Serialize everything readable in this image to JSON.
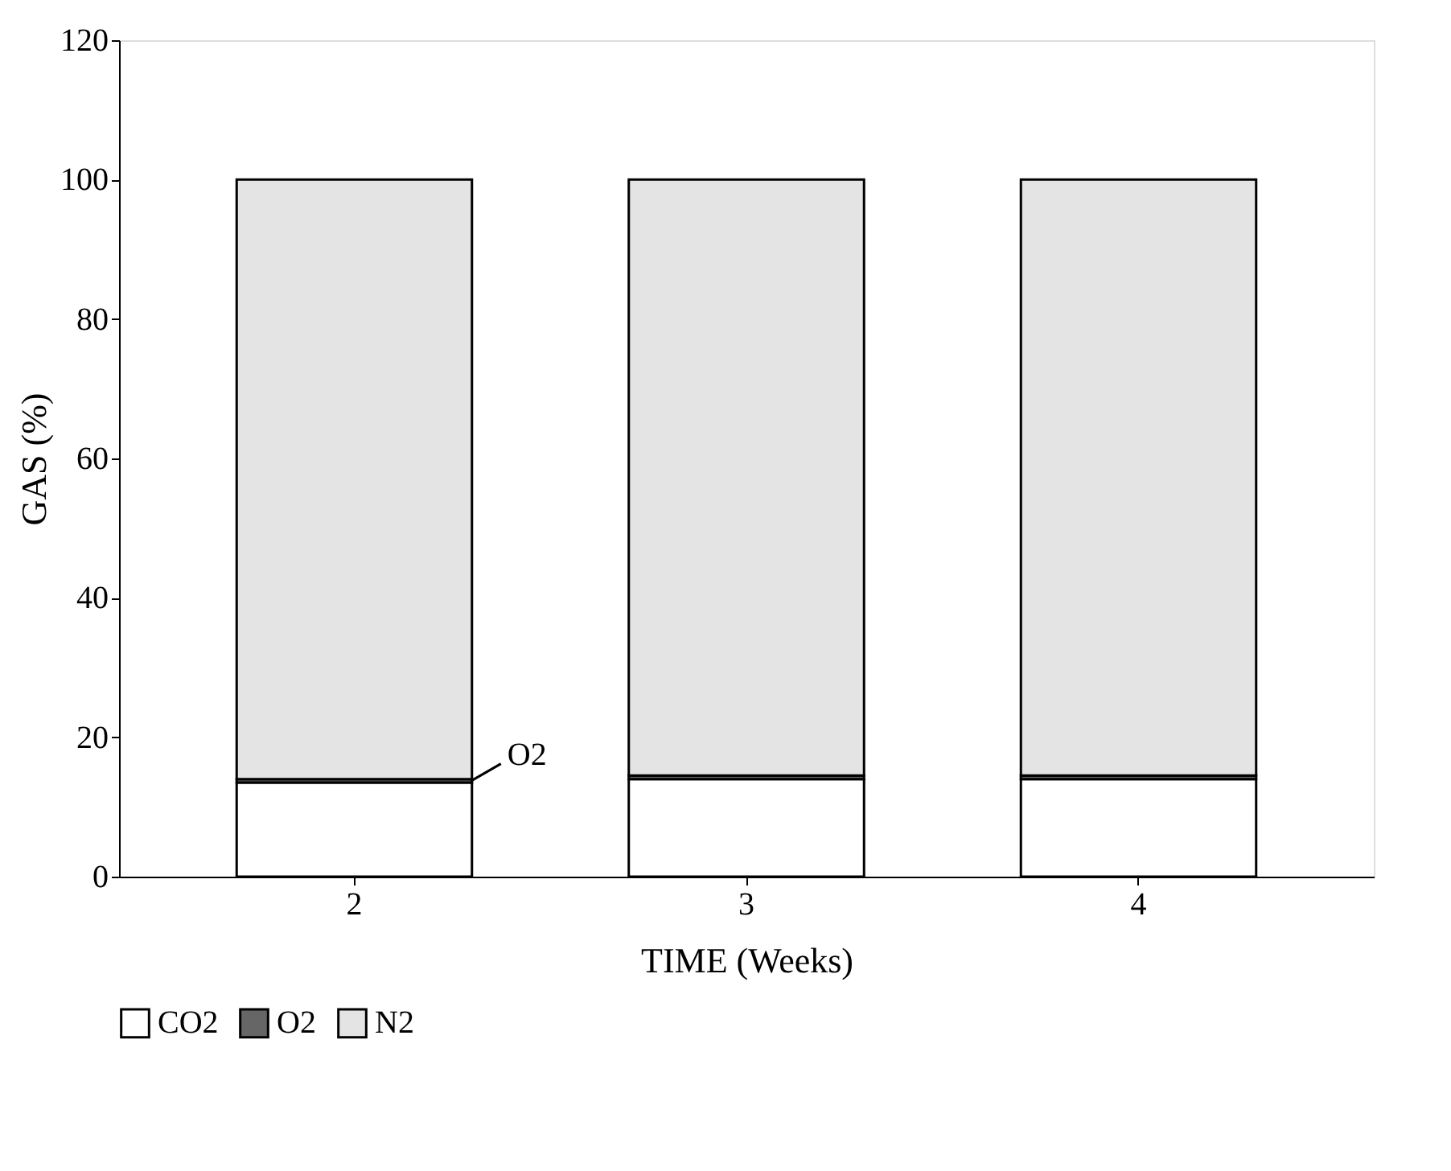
{
  "chart_data": {
    "type": "bar",
    "stacked": true,
    "xlabel": "TIME (Weeks)",
    "ylabel": "GAS (%)",
    "categories": [
      "2",
      "3",
      "4"
    ],
    "series": [
      {
        "name": "CO2",
        "color": "#ffffff",
        "values": [
          13.5,
          14,
          14
        ]
      },
      {
        "name": "O2",
        "color": "#666666",
        "values": [
          0.5,
          0.5,
          0.5
        ]
      },
      {
        "name": "N2",
        "color": "#e4e4e4",
        "values": [
          86,
          85.5,
          85.5
        ]
      }
    ],
    "ylim": [
      0,
      120
    ],
    "yticks": [
      0,
      20,
      40,
      60,
      80,
      100,
      120
    ],
    "annotations": [
      "O2"
    ],
    "legend": "bottom",
    "grid": false
  }
}
